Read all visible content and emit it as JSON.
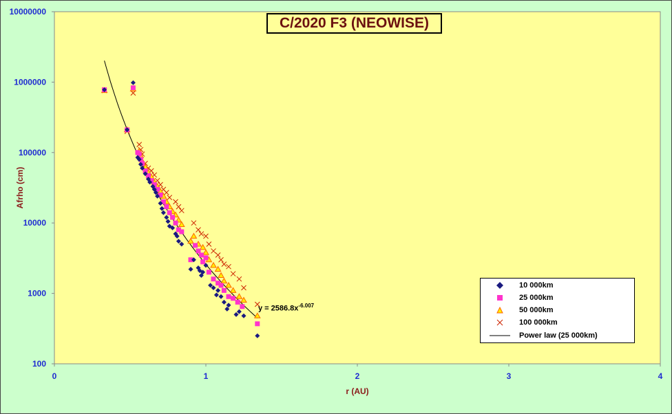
{
  "chart_data": {
    "type": "scatter",
    "title": "C/2020 F3 (NEOWISE)",
    "xlabel": "r (AU)",
    "ylabel": "Afrho (cm)",
    "xlim": [
      0,
      4
    ],
    "ylim": [
      100,
      10000000
    ],
    "yscale": "log",
    "xticks": [
      "0",
      "1",
      "2",
      "3",
      "4"
    ],
    "yticks": [
      "100",
      "1000",
      "10000",
      "100000",
      "1000000",
      "10000000"
    ],
    "grid": false,
    "legend_position": "bottom-right",
    "series": [
      {
        "name": "10 000km",
        "marker": "diamond",
        "color": "#1a1a80",
        "x": [
          0.33,
          0.52,
          0.48,
          0.55,
          0.56,
          0.57,
          0.58,
          0.6,
          0.62,
          0.63,
          0.65,
          0.66,
          0.67,
          0.68,
          0.7,
          0.71,
          0.72,
          0.74,
          0.75,
          0.76,
          0.78,
          0.8,
          0.81,
          0.82,
          0.84,
          0.9,
          0.92,
          0.95,
          0.96,
          0.97,
          0.98,
          1.0,
          1.03,
          1.05,
          1.07,
          1.08,
          1.1,
          1.12,
          1.14,
          1.15,
          1.2,
          1.22,
          1.25,
          1.34
        ],
        "y": [
          780000,
          980000,
          210000,
          85000,
          80000,
          68000,
          60000,
          50000,
          42000,
          38000,
          33000,
          30000,
          27000,
          24000,
          19000,
          16000,
          14000,
          12000,
          10500,
          9000,
          8500,
          7000,
          6500,
          5500,
          5000,
          2200,
          3000,
          2300,
          2100,
          1800,
          2000,
          2500,
          1300,
          1200,
          950,
          1100,
          900,
          750,
          600,
          680,
          500,
          550,
          480,
          250
        ]
      },
      {
        "name": "25 000km",
        "marker": "square",
        "color": "#ff33cc",
        "x": [
          0.33,
          0.52,
          0.48,
          0.55,
          0.56,
          0.57,
          0.58,
          0.6,
          0.62,
          0.64,
          0.66,
          0.68,
          0.7,
          0.72,
          0.74,
          0.76,
          0.78,
          0.8,
          0.82,
          0.84,
          0.9,
          0.93,
          0.95,
          0.97,
          0.98,
          1.0,
          1.02,
          1.05,
          1.08,
          1.1,
          1.12,
          1.15,
          1.18,
          1.21,
          1.24,
          1.34
        ],
        "y": [
          780000,
          830000,
          210000,
          100000,
          95000,
          80000,
          70000,
          55000,
          47000,
          40000,
          35000,
          30000,
          25000,
          20000,
          17000,
          14000,
          12000,
          10000,
          8000,
          7500,
          3000,
          4800,
          4000,
          3500,
          2800,
          3200,
          2000,
          1600,
          1400,
          1300,
          1100,
          900,
          850,
          750,
          650,
          370
        ]
      },
      {
        "name": "50 000km",
        "marker": "triangle",
        "color": "#ff6600",
        "x": [
          0.33,
          0.52,
          0.48,
          0.56,
          0.57,
          0.58,
          0.6,
          0.62,
          0.64,
          0.66,
          0.68,
          0.7,
          0.72,
          0.74,
          0.76,
          0.78,
          0.8,
          0.82,
          0.84,
          0.9,
          0.92,
          0.95,
          0.98,
          1.0,
          1.02,
          1.05,
          1.08,
          1.1,
          1.12,
          1.15,
          1.18,
          1.22,
          1.25,
          1.34
        ],
        "y": [
          760000,
          800000,
          210000,
          105000,
          90000,
          75000,
          62000,
          52000,
          45000,
          38000,
          33000,
          28000,
          24000,
          20000,
          17000,
          14500,
          13000,
          11000,
          9500,
          5500,
          6500,
          5000,
          4500,
          3800,
          3000,
          2500,
          2200,
          1800,
          1500,
          1300,
          1100,
          900,
          800,
          480
        ]
      },
      {
        "name": "100 000km",
        "marker": "x",
        "color": "#cc2200",
        "x": [
          0.33,
          0.52,
          0.48,
          0.56,
          0.57,
          0.58,
          0.6,
          0.62,
          0.64,
          0.66,
          0.68,
          0.7,
          0.72,
          0.74,
          0.76,
          0.8,
          0.82,
          0.84,
          0.92,
          0.95,
          0.97,
          1.0,
          1.02,
          1.05,
          1.08,
          1.1,
          1.12,
          1.15,
          1.18,
          1.22,
          1.25,
          1.34
        ],
        "y": [
          760000,
          700000,
          200000,
          130000,
          110000,
          95000,
          70000,
          60000,
          55000,
          48000,
          40000,
          35000,
          30000,
          27000,
          23000,
          20000,
          17000,
          15000,
          10000,
          8000,
          7000,
          6500,
          5000,
          4000,
          3500,
          3000,
          2600,
          2400,
          1900,
          1600,
          1200,
          700
        ]
      }
    ],
    "trendline": {
      "name": "Power law (25 000km)",
      "coefficient": 2586.8,
      "exponent": -6.007,
      "x_range": [
        0.33,
        1.34
      ]
    },
    "equation_label": {
      "base": "y = 2586.8x",
      "exponent": "-6.007"
    }
  }
}
